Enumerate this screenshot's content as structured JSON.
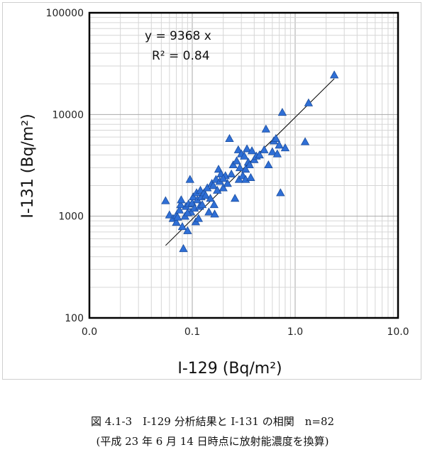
{
  "chart_data": {
    "type": "scatter",
    "x_scale": "log",
    "y_scale": "log",
    "xlim": [
      0.01,
      10
    ],
    "ylim": [
      100,
      100000
    ],
    "x_ticks": [
      "0.0",
      "0.1",
      "1.0",
      "10.0"
    ],
    "y_ticks": [
      "100000",
      "10000",
      "1000",
      "100"
    ],
    "xlabel": "I-129  (Bq/m²)",
    "ylabel": "I-131  (Bq/m²)",
    "grid": true,
    "marker": "triangle",
    "marker_color": "#2f6fd6",
    "trend_line": {
      "slope": 9368,
      "x_range": [
        0.055,
        2.4
      ],
      "color": "#000000"
    },
    "annotation": {
      "equation": "y = 9368 x",
      "r_squared": "R² = 0.84"
    },
    "points": [
      [
        0.055,
        1420
      ],
      [
        0.06,
        1030
      ],
      [
        0.065,
        950
      ],
      [
        0.07,
        870
      ],
      [
        0.07,
        1020
      ],
      [
        0.072,
        980
      ],
      [
        0.075,
        1150
      ],
      [
        0.077,
        1300
      ],
      [
        0.078,
        1450
      ],
      [
        0.08,
        790
      ],
      [
        0.082,
        480
      ],
      [
        0.085,
        1000
      ],
      [
        0.087,
        1250
      ],
      [
        0.09,
        720
      ],
      [
        0.092,
        1320
      ],
      [
        0.095,
        2300
      ],
      [
        0.097,
        1100
      ],
      [
        0.1,
        1350
      ],
      [
        0.102,
        1550
      ],
      [
        0.105,
        1200
      ],
      [
        0.108,
        880
      ],
      [
        0.11,
        1700
      ],
      [
        0.112,
        1450
      ],
      [
        0.115,
        950
      ],
      [
        0.118,
        1250
      ],
      [
        0.12,
        1800
      ],
      [
        0.122,
        1550
      ],
      [
        0.125,
        1300
      ],
      [
        0.13,
        1700
      ],
      [
        0.135,
        1600
      ],
      [
        0.14,
        1900
      ],
      [
        0.145,
        1100
      ],
      [
        0.15,
        1500
      ],
      [
        0.155,
        2100
      ],
      [
        0.16,
        2000
      ],
      [
        0.163,
        1300
      ],
      [
        0.165,
        1050
      ],
      [
        0.17,
        2300
      ],
      [
        0.175,
        1800
      ],
      [
        0.18,
        2900
      ],
      [
        0.185,
        2200
      ],
      [
        0.19,
        2600
      ],
      [
        0.2,
        1900
      ],
      [
        0.21,
        2500
      ],
      [
        0.22,
        2100
      ],
      [
        0.23,
        5800
      ],
      [
        0.24,
        2600
      ],
      [
        0.25,
        3200
      ],
      [
        0.26,
        1500
      ],
      [
        0.27,
        3500
      ],
      [
        0.28,
        4500
      ],
      [
        0.285,
        2300
      ],
      [
        0.29,
        3000
      ],
      [
        0.3,
        4100
      ],
      [
        0.31,
        2500
      ],
      [
        0.32,
        3900
      ],
      [
        0.33,
        2300
      ],
      [
        0.34,
        4600
      ],
      [
        0.35,
        3400
      ],
      [
        0.36,
        3200
      ],
      [
        0.37,
        2400
      ],
      [
        0.38,
        4400
      ],
      [
        0.4,
        3600
      ],
      [
        0.42,
        3900
      ],
      [
        0.45,
        4000
      ],
      [
        0.5,
        4500
      ],
      [
        0.52,
        7200
      ],
      [
        0.55,
        3200
      ],
      [
        0.6,
        4300
      ],
      [
        0.62,
        5500
      ],
      [
        0.65,
        5800
      ],
      [
        0.67,
        4100
      ],
      [
        0.7,
        5000
      ],
      [
        0.72,
        1700
      ],
      [
        0.75,
        10500
      ],
      [
        0.8,
        4700
      ],
      [
        1.25,
        5400
      ],
      [
        1.35,
        13000
      ],
      [
        2.4,
        24500
      ],
      [
        0.09,
        1080
      ],
      [
        0.33,
        2900
      ],
      [
        0.2,
        2350
      ]
    ]
  },
  "caption": {
    "line1": "図 4.1-3　I-129 分析結果と I-131 の相関　n=82",
    "line2": "(平成 23 年 6 月 14 日時点に放射能濃度を換算)"
  }
}
